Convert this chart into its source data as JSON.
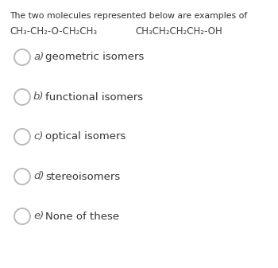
{
  "background_color": "#ffffff",
  "title_text": "The two molecules represented below are examples of",
  "title_fontsize": 7.8,
  "title_color": "#333333",
  "mol1_text": "CH₃-CH₂-O-CH₂CH₃",
  "mol2_text": "CH₃CH₂CH₂CH₂-OH",
  "mol_fontsize": 8.5,
  "mol_color": "#444444",
  "options": [
    {
      "label": "a)",
      "text": "geometric isomers"
    },
    {
      "label": "b)",
      "text": "functional isomers"
    },
    {
      "label": "c)",
      "text": "optical isomers"
    },
    {
      "label": "d)",
      "text": "stereoisomers"
    },
    {
      "label": "e)",
      "text": "None of these"
    }
  ],
  "option_fontsize": 9.5,
  "label_fontsize": 9.5,
  "circle_color": "#bbbbbb",
  "circle_linewidth": 1.4,
  "text_color": "#333333",
  "label_color": "#555555"
}
